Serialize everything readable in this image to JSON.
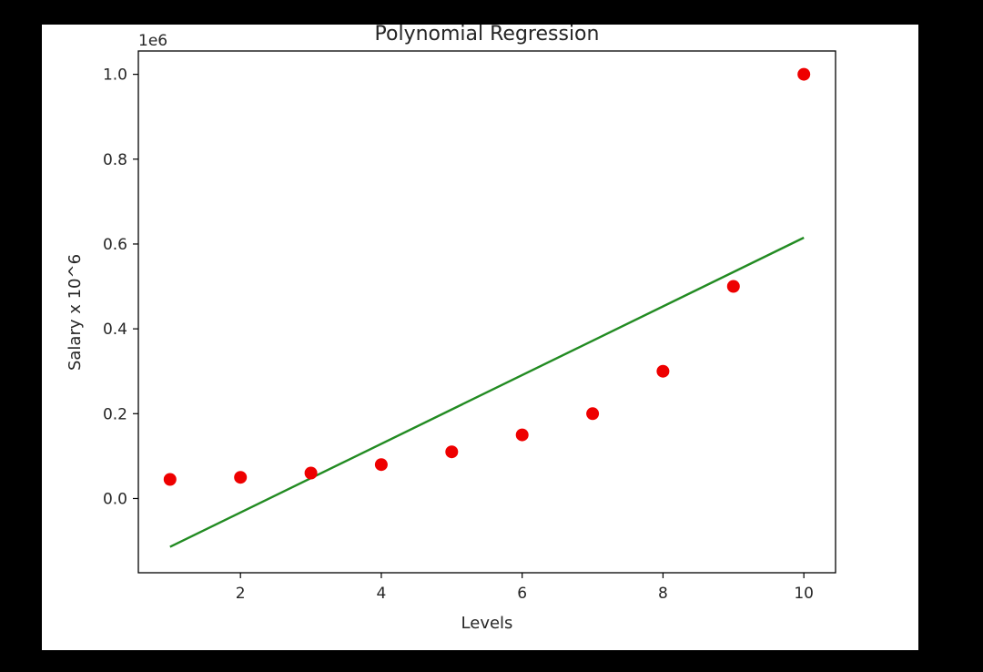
{
  "chart_data": {
    "type": "scatter",
    "title": "Polynomial Regression",
    "xlabel": "Levels",
    "ylabel": "Salary x 10^6",
    "y_offset_label": "1e6",
    "y_multiplier": 1000000,
    "xlim": [
      0.55,
      10.45
    ],
    "ylim": [
      -175000,
      1055000
    ],
    "x_ticks": [
      2,
      4,
      6,
      8,
      10
    ],
    "x_tick_labels": [
      "2",
      "4",
      "6",
      "8",
      "10"
    ],
    "y_ticks": [
      0,
      200000,
      400000,
      600000,
      800000,
      1000000
    ],
    "y_tick_labels": [
      "0.0",
      "0.2",
      "0.4",
      "0.6",
      "0.8",
      "1.0"
    ],
    "grid": false,
    "series": [
      {
        "kind": "scatter",
        "color": "#ee0000",
        "x": [
          1,
          2,
          3,
          4,
          5,
          6,
          7,
          8,
          9,
          10
        ],
        "y": [
          45000,
          50000,
          60000,
          80000,
          110000,
          150000,
          200000,
          300000,
          500000,
          1000000
        ]
      },
      {
        "kind": "line",
        "color": "#228b22",
        "x": [
          1,
          10
        ],
        "y": [
          -114000,
          615000
        ]
      }
    ]
  }
}
